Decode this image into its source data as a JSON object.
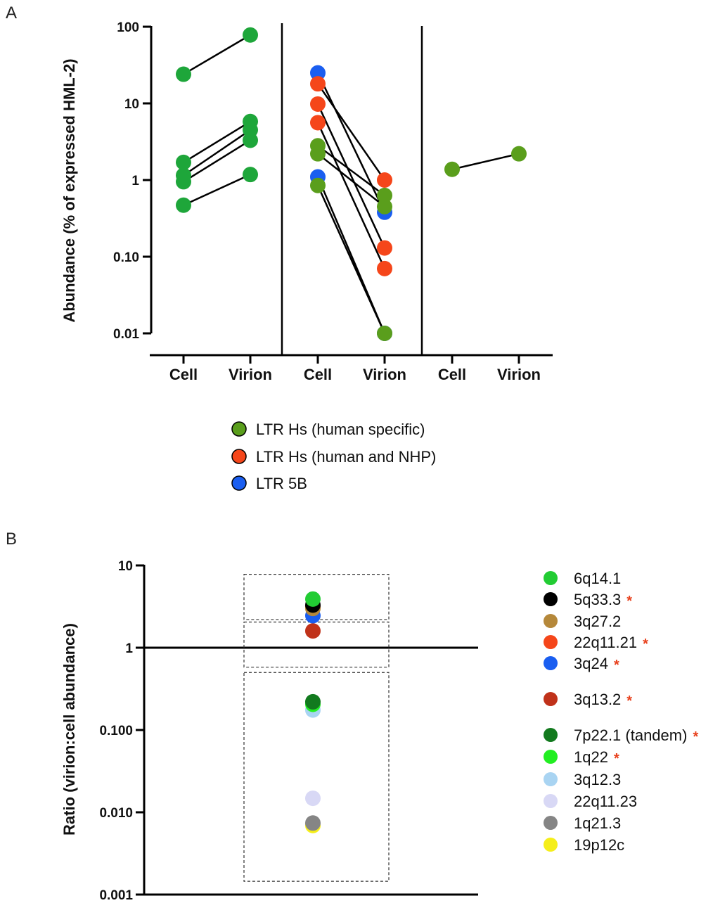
{
  "figure": {
    "panel_a_letter": "A",
    "panel_b_letter": "B"
  },
  "chart_data": [
    {
      "id": "panel_a",
      "type": "scatter",
      "ylabel": "Abundance (% of expressed HML-2)",
      "yscale": "log",
      "ylim": [
        0.01,
        100
      ],
      "yticks": [
        {
          "value": 100,
          "label": "100"
        },
        {
          "value": 10,
          "label": "10"
        },
        {
          "value": 1,
          "label": "1"
        },
        {
          "value": 0.1,
          "label": "0.10"
        },
        {
          "value": 0.01,
          "label": "0.01"
        }
      ],
      "categories": [
        "Cell",
        "Virion",
        "Cell",
        "Virion",
        "Cell",
        "Virion"
      ],
      "legend": [
        {
          "label": "LTR Hs (human specific)",
          "color": "#5a9e1c"
        },
        {
          "label": "LTR Hs (human and NHP)",
          "color": "#f5461a"
        },
        {
          "label": "LTR 5B",
          "color": "#1a5ef0"
        }
      ],
      "pairs": [
        {
          "group": 0,
          "cell": 24,
          "virion": 78,
          "color": "#1ea63a"
        },
        {
          "group": 0,
          "cell": 1.7,
          "virion": 5.8,
          "color": "#1ea63a"
        },
        {
          "group": 0,
          "cell": 1.15,
          "virion": 4.5,
          "color": "#1ea63a"
        },
        {
          "group": 0,
          "cell": 0.95,
          "virion": 3.3,
          "color": "#1ea63a"
        },
        {
          "group": 0,
          "cell": 0.47,
          "virion": 1.18,
          "color": "#1ea63a"
        },
        {
          "group": 1,
          "cell": 25,
          "virion": 0.38,
          "color": "#1a5ef0"
        },
        {
          "group": 1,
          "cell": 18,
          "virion": 1.0,
          "color": "#f5461a"
        },
        {
          "group": 1,
          "cell": 9.8,
          "virion": 0.13,
          "color": "#f5461a"
        },
        {
          "group": 1,
          "cell": 5.6,
          "virion": 0.07,
          "color": "#f5461a"
        },
        {
          "group": 1,
          "cell": 2.8,
          "virion": 0.63,
          "color": "#5a9e1c"
        },
        {
          "group": 1,
          "cell": 2.2,
          "virion": 0.45,
          "color": "#5a9e1c"
        },
        {
          "group": 1,
          "cell": 1.1,
          "virion": 0.01,
          "color": "#1a5ef0"
        },
        {
          "group": 1,
          "cell": 0.85,
          "virion": 0.01,
          "color": "#5a9e1c"
        },
        {
          "group": 2,
          "cell": 1.38,
          "virion": 2.2,
          "color": "#5a9e1c"
        }
      ]
    },
    {
      "id": "panel_b",
      "type": "scatter",
      "ylabel": "Ratio (virion:cell abundance)",
      "yscale": "log",
      "ylim": [
        0.001,
        10
      ],
      "reference_line": 1,
      "yticks": [
        {
          "value": 10,
          "label": "10"
        },
        {
          "value": 1,
          "label": "1"
        },
        {
          "value": 0.1,
          "label": "0.100"
        },
        {
          "value": 0.01,
          "label": "0.010"
        },
        {
          "value": 0.001,
          "label": "0.001"
        }
      ],
      "boxes": [
        {
          "ymin": 2.2,
          "ymax": 7.8
        },
        {
          "ymin": 0.58,
          "ymax": 2.05
        },
        {
          "ymin": 0.00145,
          "ymax": 0.5
        }
      ],
      "points": [
        {
          "label": "6q14.1",
          "value": 3.9,
          "color": "#22cc33",
          "star": false
        },
        {
          "label": "5q33.3",
          "value": 3.3,
          "color": "#000000",
          "star": true
        },
        {
          "label": "3q27.2",
          "value": 3.0,
          "color": "#b5883a",
          "star": false
        },
        {
          "label": "22q11.21",
          "value": 3.1,
          "color": "#f5461a",
          "star": true
        },
        {
          "label": "3q24",
          "value": 2.45,
          "color": "#1a5ef0",
          "star": true
        },
        {
          "label": "3q13.2",
          "value": 1.6,
          "color": "#c0321a",
          "star": true
        },
        {
          "label": "7p22.1 (tandem)",
          "value": 0.22,
          "color": "#127a1e",
          "star": true
        },
        {
          "label": "1q22",
          "value": 0.205,
          "color": "#22ee22",
          "star": true
        },
        {
          "label": "3q12.3",
          "value": 0.175,
          "color": "#a9d4f2",
          "star": false
        },
        {
          "label": "22q11.23",
          "value": 0.0148,
          "color": "#d8d8f5",
          "star": false
        },
        {
          "label": "1q21.3",
          "value": 0.0074,
          "color": "#858585",
          "star": false
        },
        {
          "label": "19p12c",
          "value": 0.0069,
          "color": "#f5ee1a",
          "star": false
        }
      ],
      "star_symbol": "*"
    }
  ]
}
